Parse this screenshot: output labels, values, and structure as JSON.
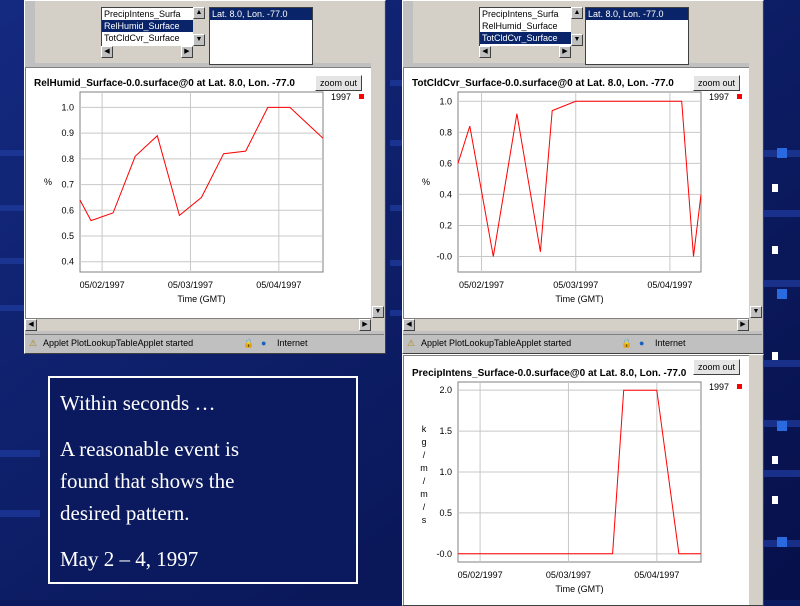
{
  "slide": {
    "text_lines": [
      "Within seconds …",
      "A reasonable event is",
      "found that shows the",
      "desired pattern.",
      "May 2 – 4, 1997"
    ]
  },
  "windows": [
    {
      "variables": [
        "PrecipIntens_Surfa",
        "RelHumid_Surface",
        "TotCldCvr_Surface"
      ],
      "selected_variable_index": 1,
      "location": "Lat. 8.0, Lon. -77.0",
      "zoom_label": "zoom out",
      "status_text": "Applet PlotLookupTableApplet started",
      "zone_text": "Internet"
    },
    {
      "variables": [
        "PrecipIntens_Surfa",
        "RelHumid_Surface",
        "TotCldCvr_Surface"
      ],
      "selected_variable_index": 2,
      "location": "Lat. 8.0, Lon. -77.0",
      "zoom_label": "zoom out",
      "status_text": "Applet PlotLookupTableApplet started",
      "zone_text": "Internet"
    },
    {
      "zoom_label": "zoom out"
    }
  ],
  "chart_data": [
    {
      "type": "line",
      "title": "RelHumid_Surface-0.0.surface@0 at Lat. 8.0, Lon. -77.0",
      "xlabel": "Time (GMT)",
      "ylabel": "%",
      "legend": "1997",
      "color": "#ff0000",
      "x_ticks": [
        "05/02/1997",
        "05/03/1997",
        "05/04/1997"
      ],
      "y_ticks": [
        "0.4",
        "0.5",
        "0.6",
        "0.7",
        "0.8",
        "0.9",
        "1.0"
      ],
      "ylim": [
        0.36,
        1.06
      ],
      "x": [
        0,
        0.125,
        0.375,
        0.625,
        0.875,
        1.125,
        1.375,
        1.625,
        1.875,
        2.125,
        2.375,
        2.625,
        2.75
      ],
      "y": [
        0.64,
        0.56,
        0.59,
        0.81,
        0.89,
        0.58,
        0.65,
        0.82,
        0.83,
        1.0,
        1.0,
        0.92,
        0.88
      ]
    },
    {
      "type": "line",
      "title": "TotCldCvr_Surface-0.0.surface@0 at Lat. 8.0, Lon. -77.0",
      "xlabel": "Time (GMT)",
      "ylabel": "%",
      "legend": "1997",
      "color": "#ff0000",
      "x_ticks": [
        "05/02/1997",
        "05/03/1997",
        "05/04/1997"
      ],
      "y_ticks": [
        "-0.0",
        "0.2",
        "0.4",
        "0.6",
        "0.8",
        "1.0"
      ],
      "ylim": [
        -0.1,
        1.06
      ],
      "x": [
        0,
        0.125,
        0.375,
        0.625,
        0.875,
        1.0,
        1.25,
        1.375,
        1.625,
        1.875,
        2.125,
        2.375,
        2.5,
        2.58
      ],
      "y": [
        0.6,
        0.84,
        0.0,
        0.92,
        0.03,
        0.94,
        1.0,
        1.0,
        1.0,
        1.0,
        1.0,
        1.0,
        0.0,
        0.4
      ]
    },
    {
      "type": "line",
      "title": "PrecipIntens_Surface-0.0.surface@0 at Lat. 8.0, Lon. -77.0",
      "xlabel": "Time (GMT)",
      "ylabel": "k g / m / m / s",
      "legend": "1997",
      "color": "#ff0000",
      "x_ticks": [
        "05/02/1997",
        "05/03/1997",
        "05/04/1997"
      ],
      "y_ticks": [
        "-0.0",
        "0.5",
        "1.0",
        "1.5",
        "2.0"
      ],
      "ylim": [
        -0.1,
        2.1
      ],
      "x": [
        0,
        0.25,
        0.5,
        0.75,
        1.0,
        1.25,
        1.5,
        1.75,
        1.875,
        2.0,
        2.25,
        2.5,
        2.75
      ],
      "y": [
        0,
        0,
        0,
        0,
        0,
        0,
        0,
        0,
        2.0,
        2.0,
        2.0,
        0,
        0
      ]
    }
  ]
}
